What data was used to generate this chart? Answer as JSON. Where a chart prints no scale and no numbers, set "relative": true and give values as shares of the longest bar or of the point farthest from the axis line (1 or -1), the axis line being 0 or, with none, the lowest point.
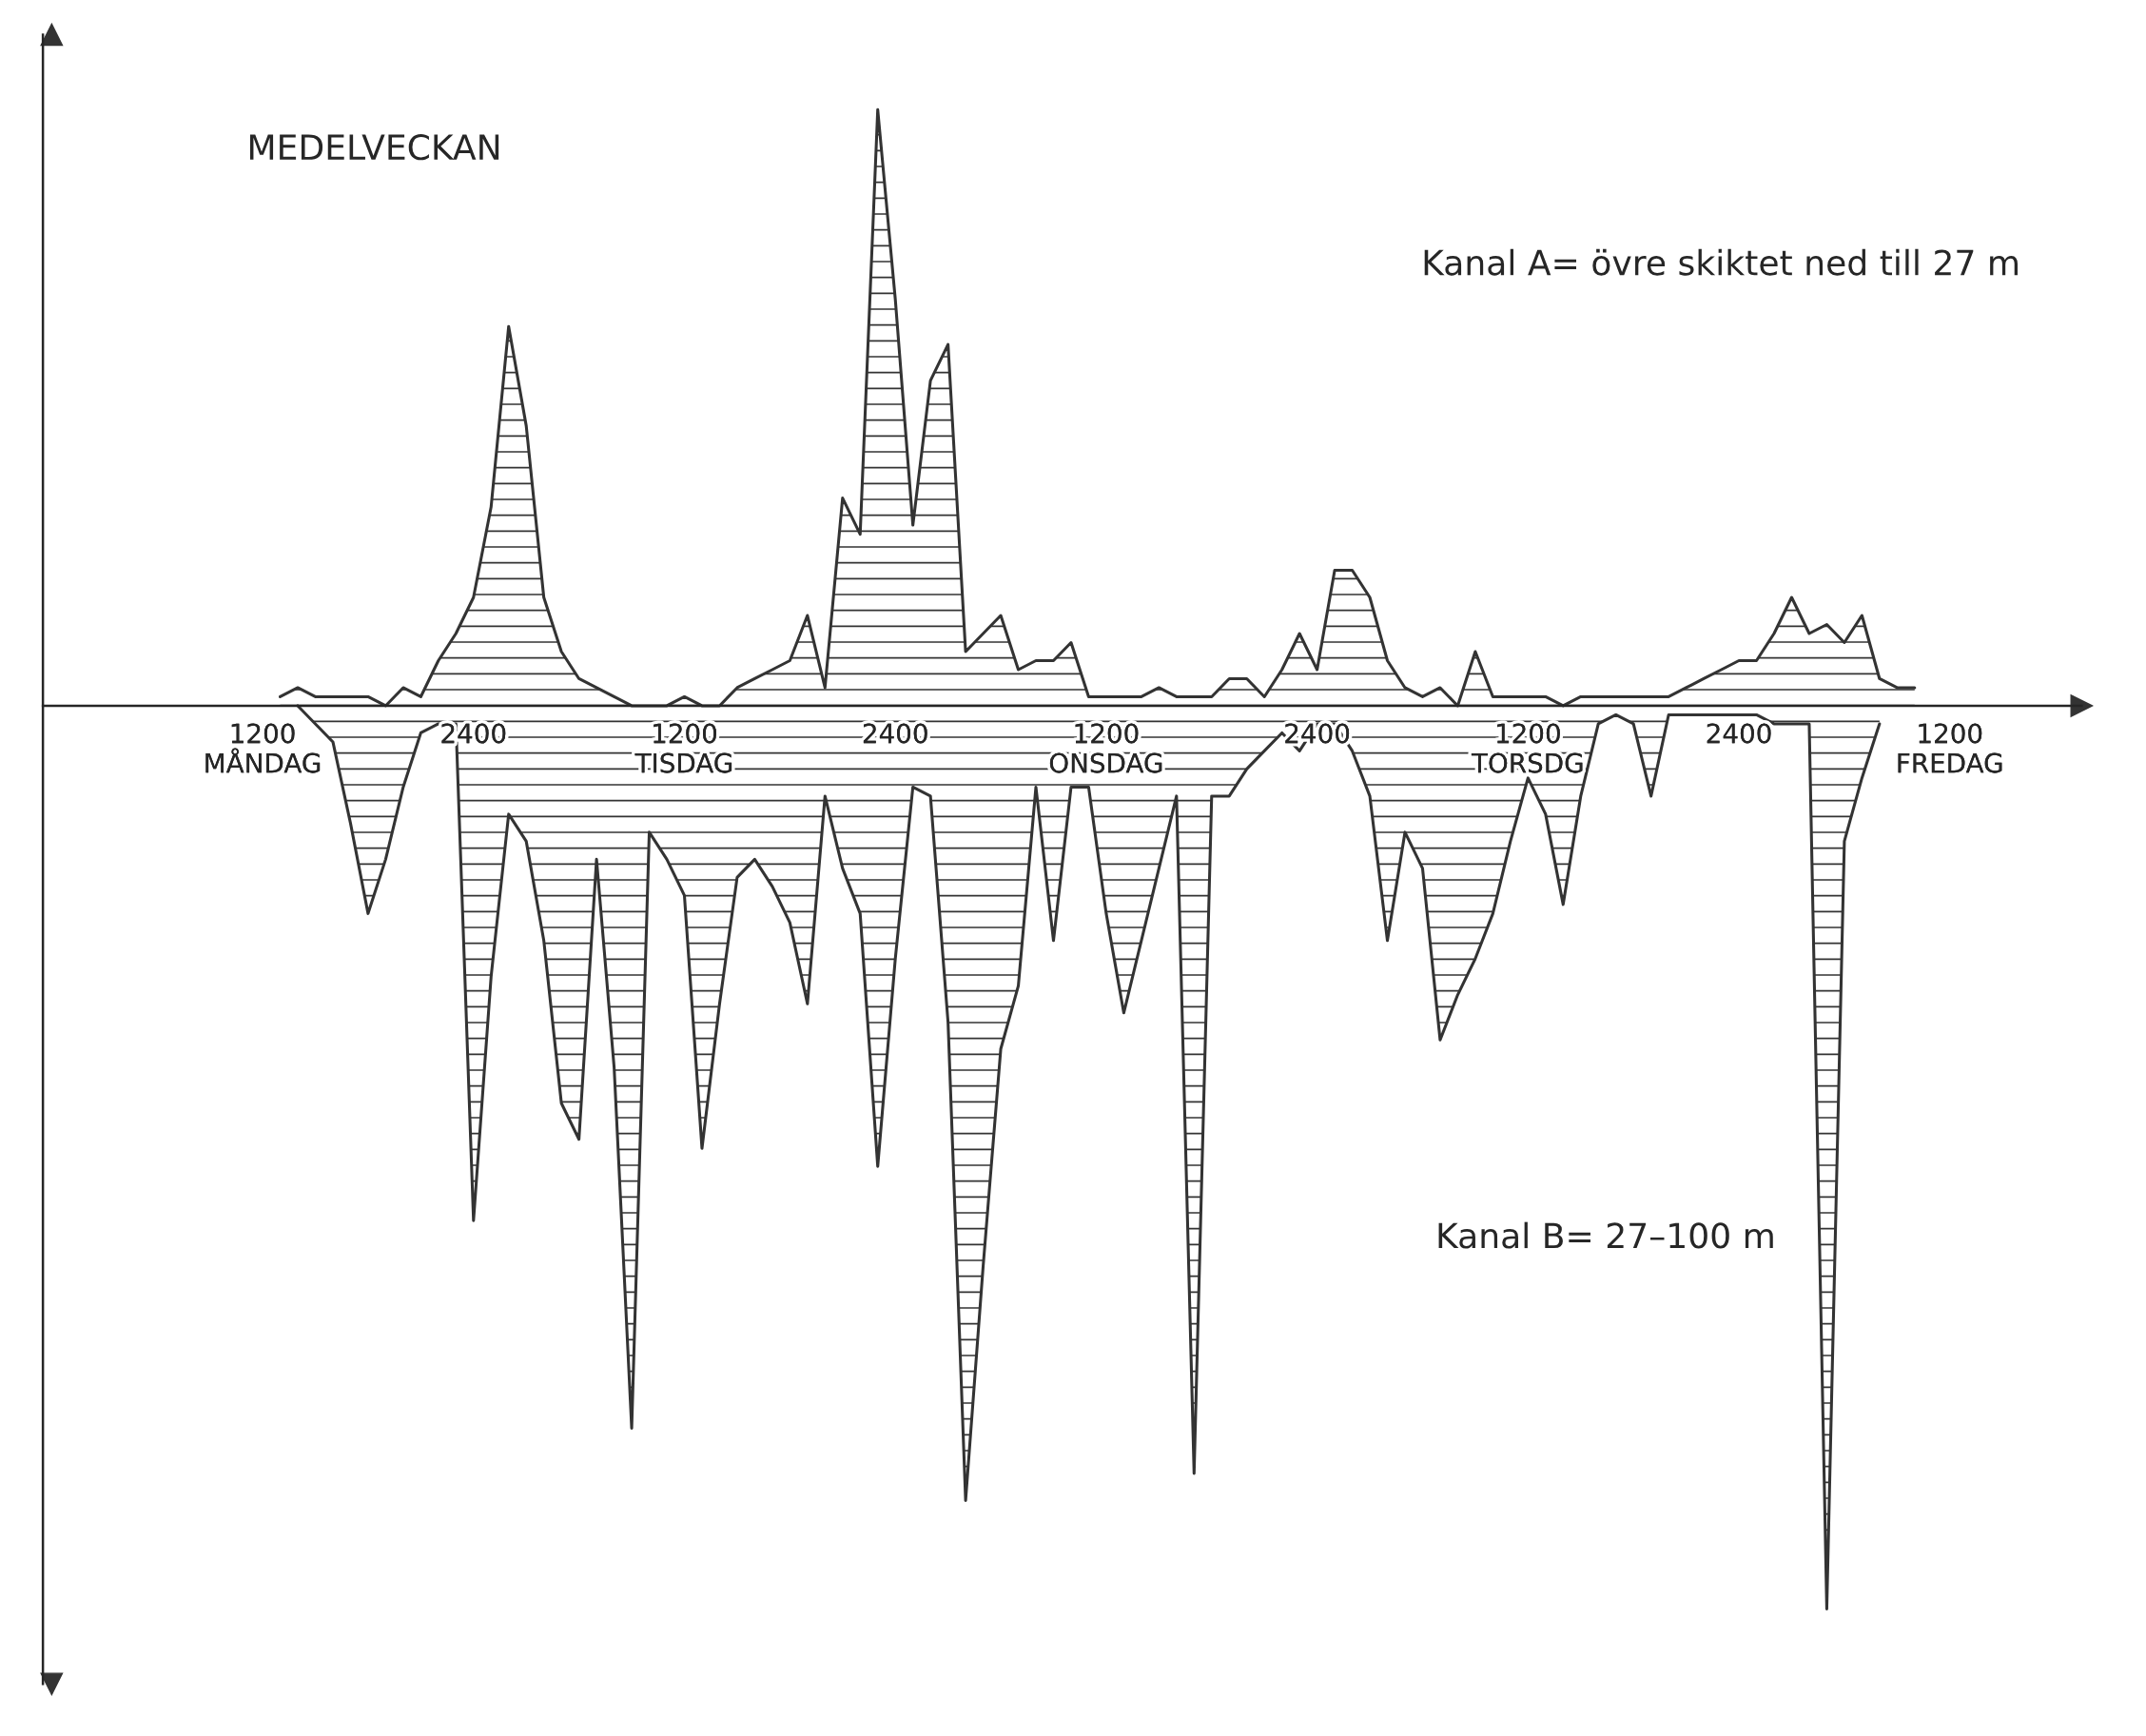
{
  "chart_data": {
    "type": "area",
    "title": "MEDELVECKAN",
    "relative": true,
    "grid": false,
    "legend": false,
    "annotations": [
      "Kanal A= övre skiktet ned till 27 m",
      "Kanal B= 27–100 m"
    ],
    "categories": [
      null,
      null,
      null,
      null,
      null,
      null,
      null,
      null,
      null,
      null,
      null,
      null,
      "1200\nMÅNDAG",
      null,
      null,
      null,
      null,
      null,
      null,
      null,
      null,
      null,
      null,
      null,
      "2400",
      null,
      null,
      null,
      null,
      null,
      null,
      null,
      null,
      null,
      null,
      null,
      "1200\nTISDAG",
      null,
      null,
      null,
      null,
      null,
      null,
      null,
      null,
      null,
      null,
      null,
      "2400",
      null,
      null,
      null,
      null,
      null,
      null,
      null,
      null,
      null,
      null,
      null,
      "1200\nONSDAG",
      null,
      null,
      null,
      null,
      null,
      null,
      null,
      null,
      null,
      null,
      null,
      "2400",
      null,
      null,
      null,
      null,
      null,
      null,
      null,
      null,
      null,
      null,
      null,
      "1200\nTORSDG",
      null,
      null,
      null,
      null,
      null,
      null,
      null,
      null,
      null,
      null,
      null,
      "2400",
      null,
      null,
      null,
      null,
      null,
      null,
      null,
      null,
      null,
      null,
      null,
      "1200\nFREDAG",
      null,
      null,
      null,
      null,
      null,
      null,
      null
    ],
    "series": [
      {
        "color": "#333333",
        "values": [
          null,
          null,
          null,
          null,
          null,
          null,
          null,
          null,
          null,
          null,
          null,
          null,
          null,
          0.01,
          0.02,
          0.01,
          0.01,
          0.01,
          0.01,
          0.0,
          0.02,
          0.01,
          0.05,
          0.08,
          0.12,
          0.22,
          0.42,
          0.31,
          0.12,
          0.06,
          0.03,
          0.02,
          0.01,
          0.0,
          0.0,
          0.0,
          0.01,
          0.0,
          0.0,
          0.02,
          0.03,
          0.04,
          0.05,
          0.1,
          0.02,
          0.23,
          0.19,
          0.66,
          0.45,
          0.2,
          0.36,
          0.4,
          0.06,
          0.08,
          0.1,
          0.04,
          0.05,
          0.05,
          0.07,
          0.01,
          0.01,
          0.01,
          0.01,
          0.02,
          0.01,
          0.01,
          0.01,
          0.03,
          0.03,
          0.01,
          0.04,
          0.08,
          0.04,
          0.15,
          0.15,
          0.12,
          0.05,
          0.02,
          0.01,
          0.02,
          0.0,
          0.06,
          0.01,
          0.01,
          0.01,
          0.01,
          0.0,
          0.01,
          0.01,
          0.01,
          0.01,
          0.01,
          0.01,
          0.02,
          0.03,
          0.04,
          0.05,
          0.05,
          0.08,
          0.12,
          0.08,
          0.09,
          0.07,
          0.1,
          0.03,
          0.02,
          0.02,
          null,
          null,
          null,
          null,
          null,
          null,
          null,
          null,
          null
        ]
      },
      {
        "color": "#333333",
        "values": [
          null,
          null,
          null,
          null,
          null,
          null,
          null,
          null,
          null,
          null,
          null,
          null,
          null,
          null,
          0.0,
          -0.02,
          -0.04,
          -0.13,
          -0.23,
          -0.17,
          -0.09,
          -0.03,
          -0.02,
          -0.02,
          -0.57,
          -0.3,
          -0.12,
          -0.15,
          -0.26,
          -0.44,
          -0.48,
          -0.17,
          -0.4,
          -0.8,
          -0.14,
          -0.17,
          -0.21,
          -0.49,
          -0.33,
          -0.19,
          -0.17,
          -0.2,
          -0.24,
          -0.33,
          -0.1,
          -0.18,
          -0.23,
          -0.51,
          -0.28,
          -0.09,
          -0.1,
          -0.35,
          -0.88,
          -0.62,
          -0.38,
          -0.31,
          -0.09,
          -0.26,
          -0.09,
          -0.09,
          -0.23,
          -0.34,
          -0.26,
          -0.18,
          -0.1,
          -0.85,
          -0.1,
          -0.1,
          -0.07,
          -0.05,
          -0.03,
          -0.05,
          -0.02,
          -0.02,
          -0.05,
          -0.1,
          -0.26,
          -0.14,
          -0.18,
          -0.37,
          -0.32,
          -0.28,
          -0.23,
          -0.15,
          -0.08,
          -0.12,
          -0.22,
          -0.1,
          -0.02,
          -0.01,
          -0.02,
          -0.1,
          -0.01,
          -0.01,
          -0.01,
          -0.01,
          -0.01,
          -0.01,
          -0.02,
          -0.02,
          -0.02,
          -1,
          -0.15,
          -0.08,
          -0.02,
          null,
          null,
          null,
          null,
          null,
          null,
          null,
          null,
          null,
          null,
          null
        ]
      }
    ]
  }
}
